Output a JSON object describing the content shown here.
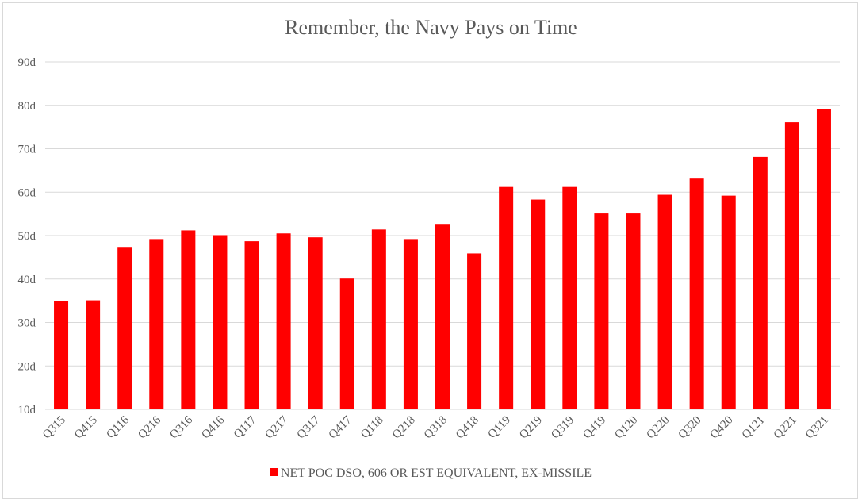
{
  "chart_data": {
    "type": "bar",
    "title": "Remember, the Navy Pays on Time",
    "categories": [
      "Q315",
      "Q415",
      "Q116",
      "Q216",
      "Q316",
      "Q416",
      "Q117",
      "Q217",
      "Q317",
      "Q417",
      "Q118",
      "Q218",
      "Q318",
      "Q418",
      "Q119",
      "Q219",
      "Q319",
      "Q419",
      "Q120",
      "Q220",
      "Q320",
      "Q420",
      "Q121",
      "Q221",
      "Q321"
    ],
    "series": [
      {
        "name": "NET POC DSO, 606 OR EST EQUIVALENT, EX-MISSILE",
        "color": "#ff0000",
        "values": [
          35.0,
          35.1,
          47.4,
          49.2,
          51.2,
          50.1,
          48.7,
          50.5,
          49.6,
          40.1,
          51.4,
          49.2,
          52.7,
          45.9,
          61.2,
          58.3,
          61.2,
          55.1,
          55.1,
          59.4,
          63.3,
          59.2,
          68.1,
          76.1,
          79.2
        ]
      }
    ],
    "ylim": [
      10,
      90
    ],
    "yticks": [
      10,
      20,
      30,
      40,
      50,
      60,
      70,
      80,
      90
    ],
    "ytick_labels": [
      "10d",
      "20d",
      "30d",
      "40d",
      "50d",
      "60d",
      "70d",
      "80d",
      "90d"
    ],
    "xlabel": "",
    "ylabel": "",
    "grid": true,
    "legend_position": "bottom"
  }
}
